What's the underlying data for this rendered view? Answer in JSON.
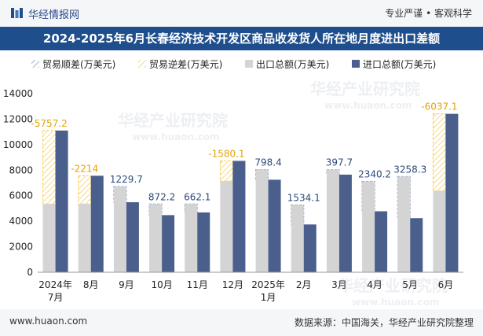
{
  "header": {
    "brand": "华经情报网",
    "slogan": "专业严谨 • 客观科学"
  },
  "footer": {
    "url": "www.huaon.com",
    "source": "数据来源：中国海关，华经产业研究院整理"
  },
  "watermark": "华经产业研究院",
  "watermark_url": "www.huaon.com",
  "colors": {
    "export": "#d4d4d4",
    "import": "#4a5f8c",
    "surplus_hatch": "#7b92c2",
    "deficit_hatch": "#f5c94c",
    "title_bg": "#1f4e8c"
  },
  "chart_data": {
    "type": "bar",
    "title": "2024-2025年6月长春经济技术开发区商品收发货人所在地月度进出口差额",
    "categories": [
      [
        "2024年",
        "7月"
      ],
      [
        "8月"
      ],
      [
        "9月"
      ],
      [
        "10月"
      ],
      [
        "11月"
      ],
      [
        "12月"
      ],
      [
        "2025年",
        "1月"
      ],
      [
        "2月"
      ],
      [
        "3月"
      ],
      [
        "4月"
      ],
      [
        "5月"
      ],
      [
        "6月"
      ]
    ],
    "legend": [
      "贸易顺差(万美元)",
      "贸易逆差(万美元)",
      "出口总额(万美元)",
      "进口总额(万美元)"
    ],
    "series": [
      {
        "name": "出口总额(万美元)",
        "values": [
          5350,
          5350,
          6720,
          5350,
          5350,
          7150,
          8050,
          5280,
          8050,
          7120,
          7500,
          6380
        ]
      },
      {
        "name": "进口总额(万美元)",
        "values": [
          11107,
          7564,
          5490,
          4478,
          4688,
          8730,
          7252,
          3746,
          7652,
          4780,
          4242,
          12417
        ]
      }
    ],
    "balance": [
      -5757.2,
      -2214,
      1229.7,
      872.2,
      662.1,
      -1580.1,
      798.4,
      1534.1,
      397.7,
      2340.2,
      3258.3,
      -6037.1
    ],
    "balance_labels": [
      "-5757.2",
      "-2214",
      "1229.7",
      "872.2",
      "662.1",
      "-1580.1",
      "798.4",
      "1534.1",
      "397.7",
      "2340.2",
      "3258.3",
      "-6037.1"
    ],
    "ylim": [
      0,
      14000
    ],
    "yticks": [
      0,
      2000,
      4000,
      6000,
      8000,
      10000,
      12000,
      14000
    ],
    "xlabel": "",
    "ylabel": ""
  }
}
